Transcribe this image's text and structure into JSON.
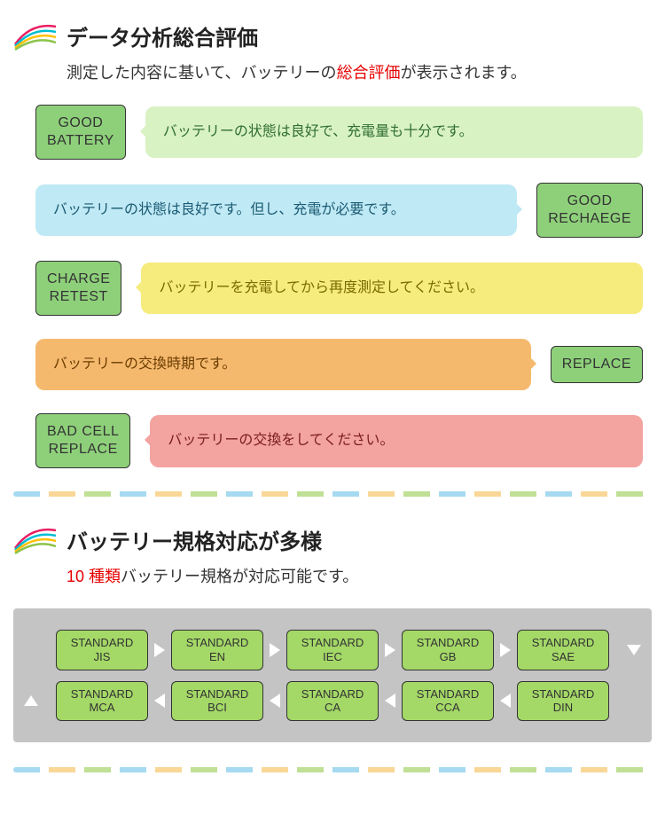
{
  "section1": {
    "title": "データ分析総合評価",
    "subtitle_pre": "測定した内容に基いて、バッテリーの",
    "subtitle_hl": "総合評価",
    "subtitle_post": "が表示されます。"
  },
  "evals": [
    {
      "side": "left",
      "tag_text": "GOOD\nBATTERY",
      "tag_bg": "#8ed07a",
      "bubble_text": "バッテリーの状態は良好で、充電量も十分です。",
      "bubble_bg": "#d9f2c4",
      "bubble_text_color": "#2f6f2f"
    },
    {
      "side": "right",
      "tag_text": "GOOD\nRECHAEGE",
      "tag_bg": "#8ed07a",
      "bubble_text": "バッテリーの状態は良好です。但し、充電が必要です。",
      "bubble_bg": "#bfe9f4",
      "bubble_text_color": "#1a5a73"
    },
    {
      "side": "left",
      "tag_text": "CHARGE\nRETEST",
      "tag_bg": "#8ed07a",
      "bubble_text": "バッテリーを充電してから再度測定してください。",
      "bubble_bg": "#f6ec7e",
      "bubble_text_color": "#7a6a00"
    },
    {
      "side": "right",
      "tag_text": "REPLACE",
      "tag_bg": "#8ed07a",
      "bubble_text": "バッテリーの交換時期です。",
      "bubble_bg": "#f5b96e",
      "bubble_text_color": "#6b3d00"
    },
    {
      "side": "left",
      "tag_text": "BAD CELL\nREPLACE",
      "tag_bg": "#8ed07a",
      "bubble_text": "バッテリーの交換をしてください。",
      "bubble_bg": "#f3a3a0",
      "bubble_text_color": "#7a1e1e"
    }
  ],
  "section2": {
    "title": "バッテリー規格対応が多様",
    "subtitle_hl": "10 種類",
    "subtitle_post": "バッテリー規格が対応可能です。"
  },
  "standards": {
    "box_bg": "#a4d867",
    "top": [
      {
        "l1": "STANDARD",
        "l2": "JIS"
      },
      {
        "l1": "STANDARD",
        "l2": "EN"
      },
      {
        "l1": "STANDARD",
        "l2": "IEC"
      },
      {
        "l1": "STANDARD",
        "l2": "GB"
      },
      {
        "l1": "STANDARD",
        "l2": "SAE"
      }
    ],
    "bottom": [
      {
        "l1": "STANDARD",
        "l2": "MCA"
      },
      {
        "l1": "STANDARD",
        "l2": "BCI"
      },
      {
        "l1": "STANDARD",
        "l2": "CA"
      },
      {
        "l1": "STANDARD",
        "l2": "CCA"
      },
      {
        "l1": "STANDARD",
        "l2": "DIN"
      }
    ]
  }
}
